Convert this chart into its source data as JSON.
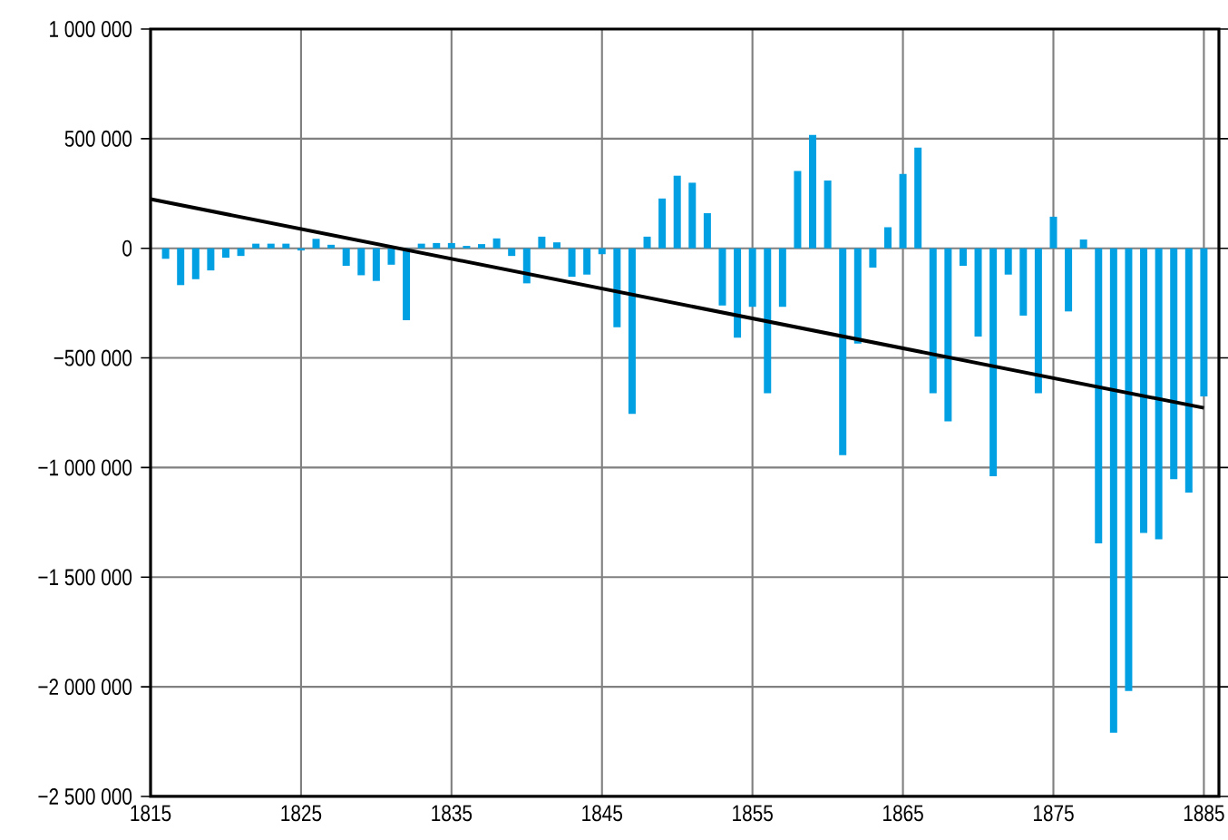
{
  "chart_data": {
    "type": "bar",
    "x": [
      1816,
      1817,
      1818,
      1819,
      1820,
      1821,
      1822,
      1823,
      1824,
      1825,
      1826,
      1827,
      1828,
      1829,
      1830,
      1831,
      1832,
      1833,
      1834,
      1835,
      1836,
      1837,
      1838,
      1839,
      1840,
      1841,
      1842,
      1843,
      1844,
      1845,
      1846,
      1847,
      1848,
      1849,
      1850,
      1851,
      1852,
      1853,
      1854,
      1855,
      1856,
      1857,
      1858,
      1859,
      1860,
      1861,
      1862,
      1863,
      1864,
      1865,
      1866,
      1867,
      1868,
      1869,
      1870,
      1871,
      1872,
      1873,
      1874,
      1875,
      1876,
      1877,
      1878,
      1879,
      1880,
      1881,
      1882,
      1883,
      1884,
      1885
    ],
    "series": [
      {
        "color": "#00a0e3",
        "values": [
          -48000,
          -168000,
          -141000,
          -101000,
          -43000,
          -35000,
          21000,
          21000,
          21000,
          -10000,
          43000,
          16000,
          -80000,
          -123000,
          -149000,
          -75000,
          -328000,
          21000,
          24000,
          24000,
          11000,
          19000,
          45000,
          -35000,
          -160000,
          53000,
          27000,
          -130000,
          -120000,
          -27000,
          -360000,
          -755000,
          53000,
          227000,
          331000,
          299000,
          160000,
          -261000,
          -408000,
          -267000,
          -661000,
          -267000,
          352000,
          517000,
          309000,
          -944000,
          -435000,
          -88000,
          96000,
          339000,
          459000,
          -661000,
          -789000,
          -80000,
          -403000,
          -1040000,
          -120000,
          -307000,
          -661000,
          144000,
          -288000,
          40000,
          -1346000,
          -2210000,
          -2019000,
          -1298000,
          -1327000,
          -1053000,
          -1114000,
          -676000
        ]
      },
      {
        "type": "line",
        "color": "#000000",
        "x": [
          1815,
          1885
        ],
        "values": [
          224000,
          -728000
        ]
      }
    ],
    "xlim": [
      1815,
      1886
    ],
    "xticks": [
      1815,
      1825,
      1835,
      1845,
      1855,
      1865,
      1875,
      1885
    ],
    "ylim": [
      -2500000,
      1000000
    ],
    "yticks": [
      {
        "value": 1000000,
        "label": "1 000 000"
      },
      {
        "value": 500000,
        "label": "500 000"
      },
      0,
      {
        "value": -500000,
        "label": "−500 000"
      },
      {
        "value": -1000000,
        "label": "−1 000 000"
      },
      {
        "value": -1500000,
        "label": "−1 500 000"
      },
      {
        "value": -2000000,
        "label": "−2 000 000"
      },
      {
        "value": -2500000,
        "label": "−2 500 000"
      }
    ],
    "grid": true
  }
}
